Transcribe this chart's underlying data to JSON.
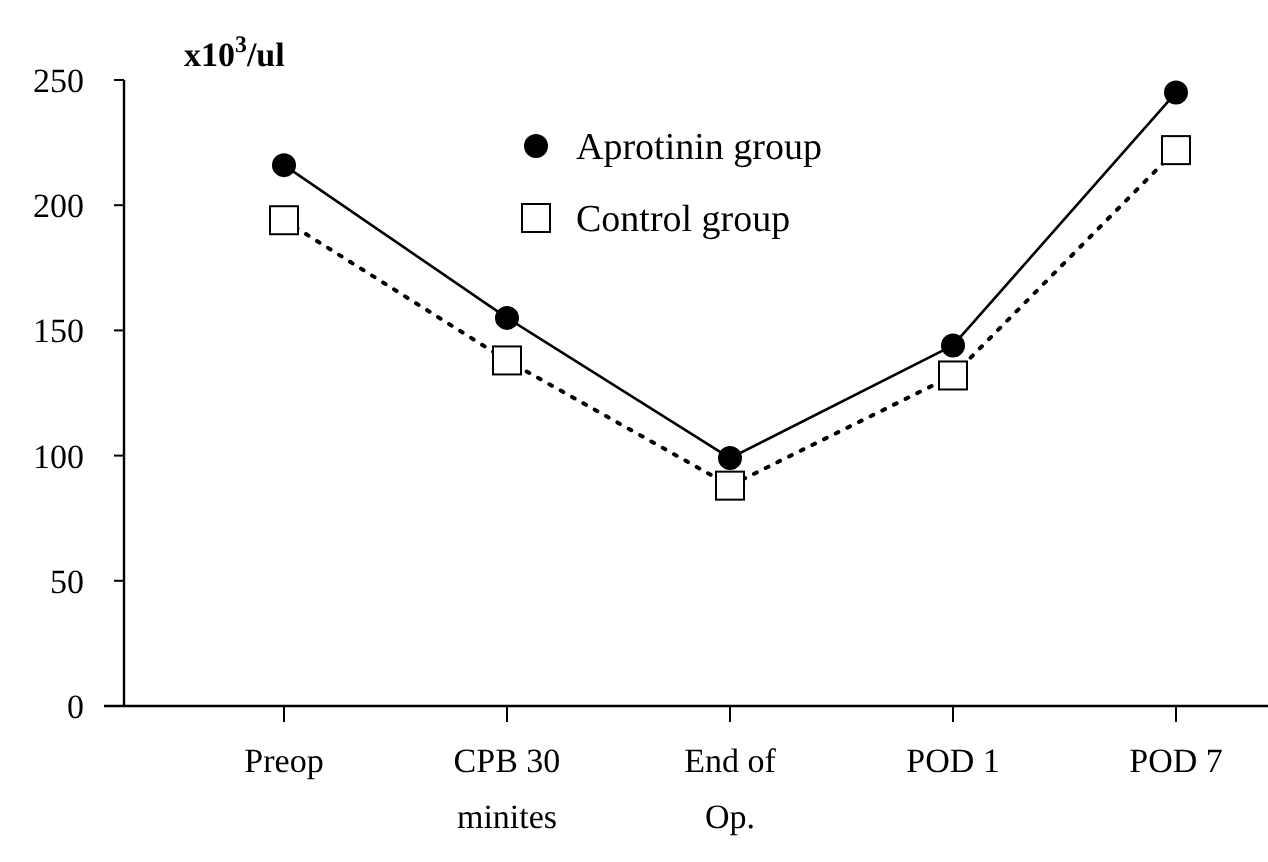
{
  "chart_data": {
    "type": "line",
    "ylabel": "x10$^{3}$/ul",
    "categories": [
      "Preop",
      "CPB 30\nminites",
      "End of\nOp.",
      "POD 1",
      "POD 7"
    ],
    "series": [
      {
        "name": "Aprotinin group",
        "color": "#000000",
        "values": [
          216,
          155,
          99,
          144,
          245
        ],
        "marker": "circle",
        "line_style": "solid"
      },
      {
        "name": "Control group",
        "color": "#000000",
        "values": [
          194,
          138,
          88,
          132,
          222
        ],
        "marker": "square",
        "line_style": "dotted"
      }
    ],
    "ylim": [
      0,
      250
    ],
    "yticks": [
      0,
      50,
      100,
      150,
      200,
      250
    ],
    "legend": "top",
    "grid": false
  }
}
